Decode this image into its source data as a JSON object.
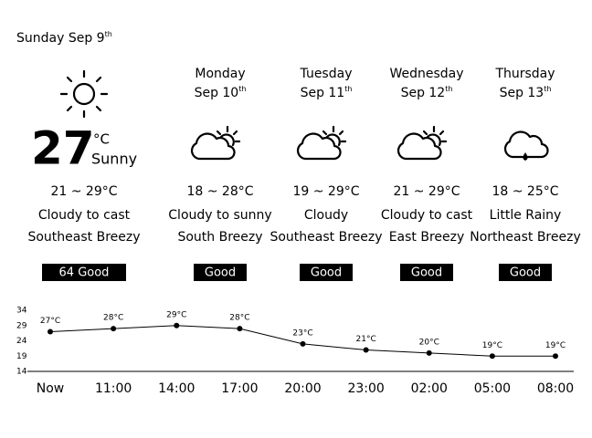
{
  "header": {
    "date": "Sunday Sep 9",
    "date_suffix": "th"
  },
  "today": {
    "temperature": "27",
    "unit": "°C",
    "condition": "Sunny",
    "range": "21 ~ 29°C",
    "description": "Cloudy to cast",
    "wind": "Southeast Breezy",
    "air_quality": "64 Good"
  },
  "forecast": [
    {
      "day": "Monday",
      "date": "Sep 10",
      "date_suffix": "th",
      "range": "18 ~ 28°C",
      "description": "Cloudy to sunny",
      "wind": "South Breezy",
      "air_quality": "Good"
    },
    {
      "day": "Tuesday",
      "date": "Sep 11",
      "date_suffix": "th",
      "range": "19 ~ 29°C",
      "description": "Cloudy",
      "wind": "Southeast Breezy",
      "air_quality": "Good"
    },
    {
      "day": "Wednesday",
      "date": "Sep 12",
      "date_suffix": "th",
      "range": "21 ~ 29°C",
      "description": "Cloudy to cast",
      "wind": "East Breezy",
      "air_quality": "Good"
    },
    {
      "day": "Thursday",
      "date": "Sep 13",
      "date_suffix": "th",
      "range": "18 ~ 25°C",
      "description": "Little Rainy",
      "wind": "Northeast Breezy",
      "air_quality": "Good"
    }
  ],
  "hourly": {
    "type": "line",
    "x": [
      "Now",
      "11:00",
      "14:00",
      "17:00",
      "20:00",
      "23:00",
      "02:00",
      "05:00",
      "08:00"
    ],
    "values": [
      27,
      28,
      29,
      28,
      23,
      21,
      20,
      19,
      19
    ],
    "value_labels": [
      "27°C",
      "28°C",
      "29°C",
      "28°C",
      "23°C",
      "21°C",
      "20°C",
      "19°C",
      "19°C"
    ],
    "ylim": [
      14,
      34
    ],
    "yticks": [
      14,
      19,
      24,
      29,
      34
    ],
    "color": "#000000"
  }
}
